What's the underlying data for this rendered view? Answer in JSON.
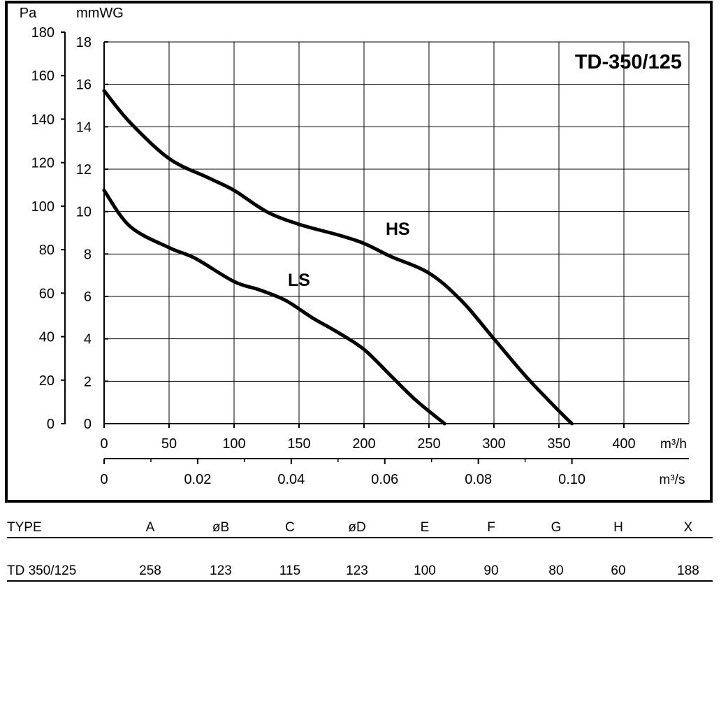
{
  "chart_data": {
    "type": "line",
    "title": "TD-350/125",
    "y_axes": [
      {
        "label": "Pa",
        "ylim": [
          0,
          180
        ],
        "ticks": [
          0,
          20,
          40,
          60,
          80,
          100,
          120,
          140,
          160,
          180
        ]
      },
      {
        "label": "mmWG",
        "ylim": [
          0,
          18
        ],
        "ticks": [
          0,
          2,
          4,
          6,
          8,
          10,
          12,
          14,
          16,
          18
        ]
      }
    ],
    "x_axes": [
      {
        "label": "m³/h",
        "xlim": [
          0,
          450
        ],
        "ticks": [
          0,
          50,
          100,
          150,
          200,
          250,
          300,
          350,
          400
        ]
      },
      {
        "label": "m³/s",
        "ticks": [
          0,
          0.02,
          0.04,
          0.06,
          0.08,
          0.1
        ],
        "tick_labels": [
          "0",
          "0.02",
          "0.04",
          "0.06",
          "0.08",
          "0.10"
        ]
      }
    ],
    "grid": true,
    "series": [
      {
        "name": "HS",
        "label_at": {
          "x": 226,
          "y": 89
        },
        "points": [
          [
            0,
            157
          ],
          [
            20,
            142
          ],
          [
            50,
            125
          ],
          [
            80,
            116
          ],
          [
            100,
            110
          ],
          [
            125,
            100
          ],
          [
            150,
            94
          ],
          [
            180,
            89
          ],
          [
            200,
            85
          ],
          [
            220,
            79
          ],
          [
            250,
            71
          ],
          [
            275,
            58
          ],
          [
            300,
            40
          ],
          [
            325,
            22
          ],
          [
            350,
            6
          ],
          [
            360,
            0
          ]
        ]
      },
      {
        "name": "LS",
        "label_at": {
          "x": 150,
          "y": 65
        },
        "points": [
          [
            0,
            110
          ],
          [
            20,
            93
          ],
          [
            50,
            83
          ],
          [
            70,
            78
          ],
          [
            100,
            67
          ],
          [
            120,
            63
          ],
          [
            140,
            58
          ],
          [
            160,
            50
          ],
          [
            180,
            43
          ],
          [
            200,
            35
          ],
          [
            220,
            23
          ],
          [
            240,
            11
          ],
          [
            262,
            0
          ]
        ]
      }
    ]
  },
  "table": {
    "headers": [
      "TYPE",
      "A",
      "øB",
      "C",
      "øD",
      "E",
      "F",
      "G",
      "H",
      "X"
    ],
    "rows": [
      [
        "TD 350/125",
        "258",
        "123",
        "115",
        "123",
        "100",
        "90",
        "80",
        "60",
        "188"
      ]
    ]
  }
}
